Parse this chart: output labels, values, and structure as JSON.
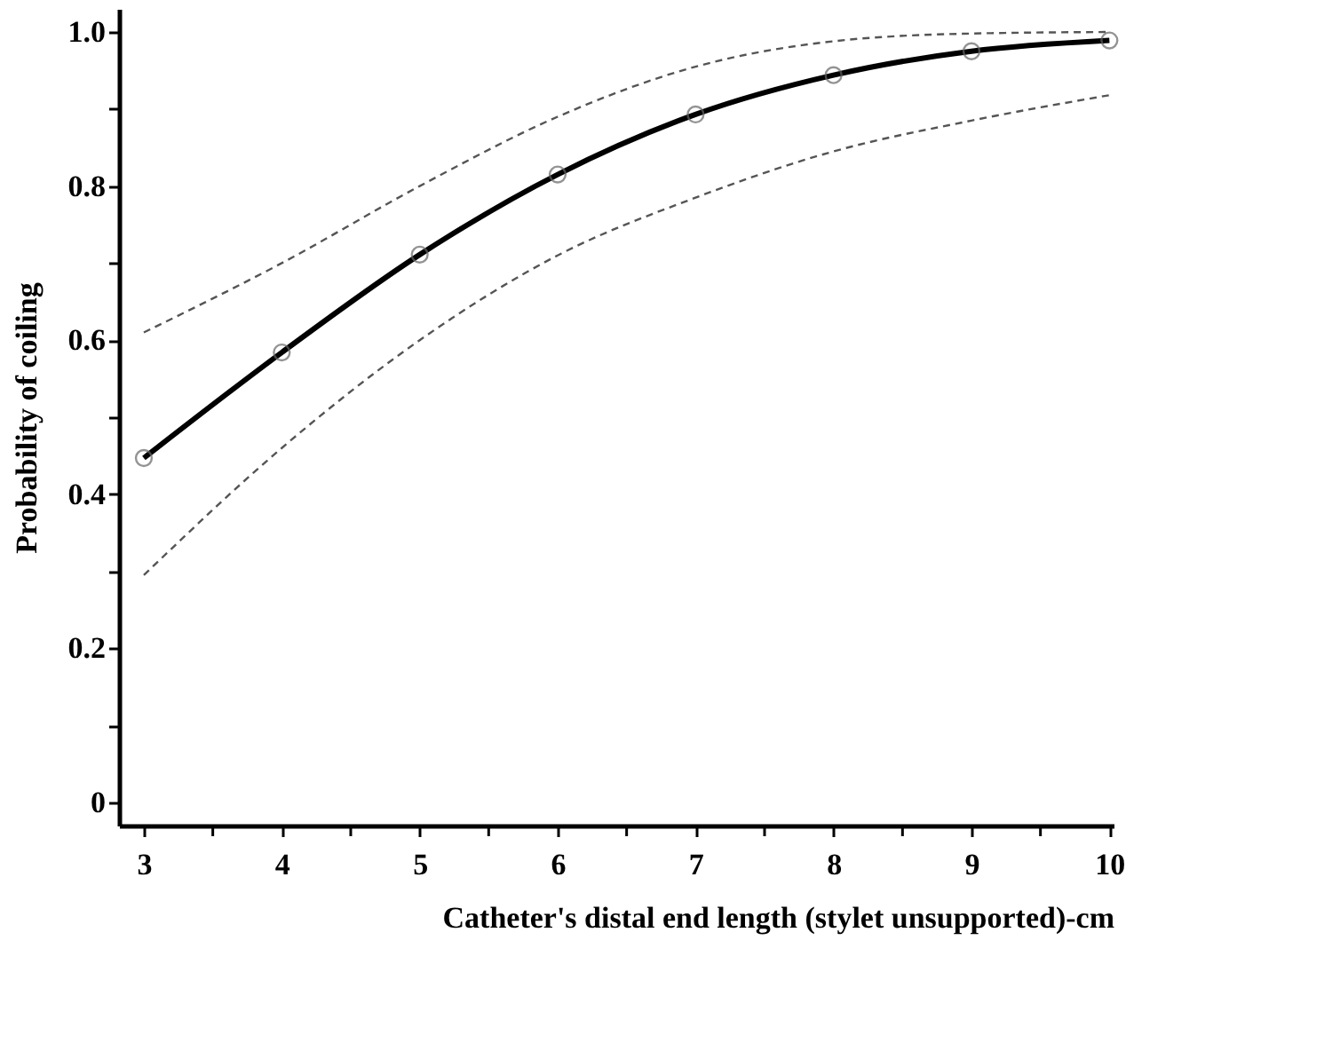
{
  "chart_data": {
    "type": "line",
    "xlabel": "Catheter's distal end length (stylet unsupported)-cm",
    "ylabel": "Probability of coiling",
    "x": [
      3,
      4,
      5,
      6,
      7,
      8,
      9,
      10
    ],
    "series": [
      {
        "color": "#555555",
        "line_style": "dashed",
        "marker": "none",
        "values": [
          0.61,
          0.7,
          0.8,
          0.89,
          0.955,
          0.988,
          0.998,
          1.0
        ]
      },
      {
        "color": "#555555",
        "line_style": "dashed",
        "marker": "none",
        "values": [
          0.295,
          0.46,
          0.6,
          0.71,
          0.785,
          0.845,
          0.885,
          0.918
        ]
      },
      {
        "color": "#000000",
        "values": [
          0.447,
          0.584,
          0.711,
          0.815,
          0.893,
          0.944,
          0.975,
          0.989
        ]
      }
    ],
    "xlim": [
      2.82,
      10.03
    ],
    "ylim": [
      -0.03,
      1.03
    ],
    "xticks": [
      3,
      {
        "value": 3.5,
        "label": null
      },
      4,
      {
        "value": 4.5,
        "label": null
      },
      5,
      {
        "value": 5.5,
        "label": null
      },
      6,
      {
        "value": 6.5,
        "label": null
      },
      7,
      {
        "value": 7.5,
        "label": null
      },
      8,
      {
        "value": 8.5,
        "label": null
      },
      9,
      {
        "value": 9.5,
        "label": null
      },
      10
    ],
    "yticks": [
      0,
      {
        "value": 0.1,
        "label": null
      },
      0.2,
      {
        "value": 0.3,
        "label": null
      },
      0.4,
      {
        "value": 0.5,
        "label": null
      },
      0.6,
      {
        "value": 0.7,
        "label": null
      },
      0.8,
      {
        "value": 0.9,
        "label": null
      },
      {
        "value": 1.0,
        "label": "1.0"
      }
    ],
    "marker": "circle",
    "line_style": "solid",
    "grid": false
  }
}
